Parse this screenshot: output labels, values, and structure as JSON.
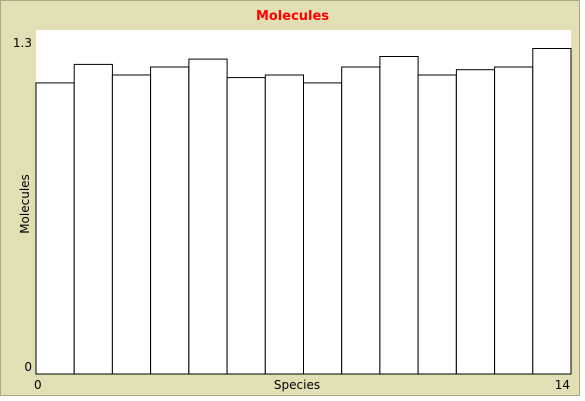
{
  "chart_data": {
    "type": "bar",
    "title": "Molecules",
    "xlabel": "Species",
    "ylabel": "Molecules",
    "xlim": [
      0,
      14
    ],
    "ylim": [
      0,
      1.3
    ],
    "x_tick_labels": [
      "0",
      "14"
    ],
    "y_tick_labels": [
      "0",
      "1.3"
    ],
    "bin_width": 1,
    "values": [
      1.1,
      1.17,
      1.13,
      1.16,
      1.19,
      1.12,
      1.13,
      1.1,
      1.16,
      1.2,
      1.13,
      1.15,
      1.16,
      1.23
    ],
    "bar_fill": "#ffffff",
    "bar_stroke": "#000000",
    "plot_background": "#ffffff",
    "frame_background": "#e0e0b4",
    "title_color": "#ff0000",
    "grid": false
  }
}
